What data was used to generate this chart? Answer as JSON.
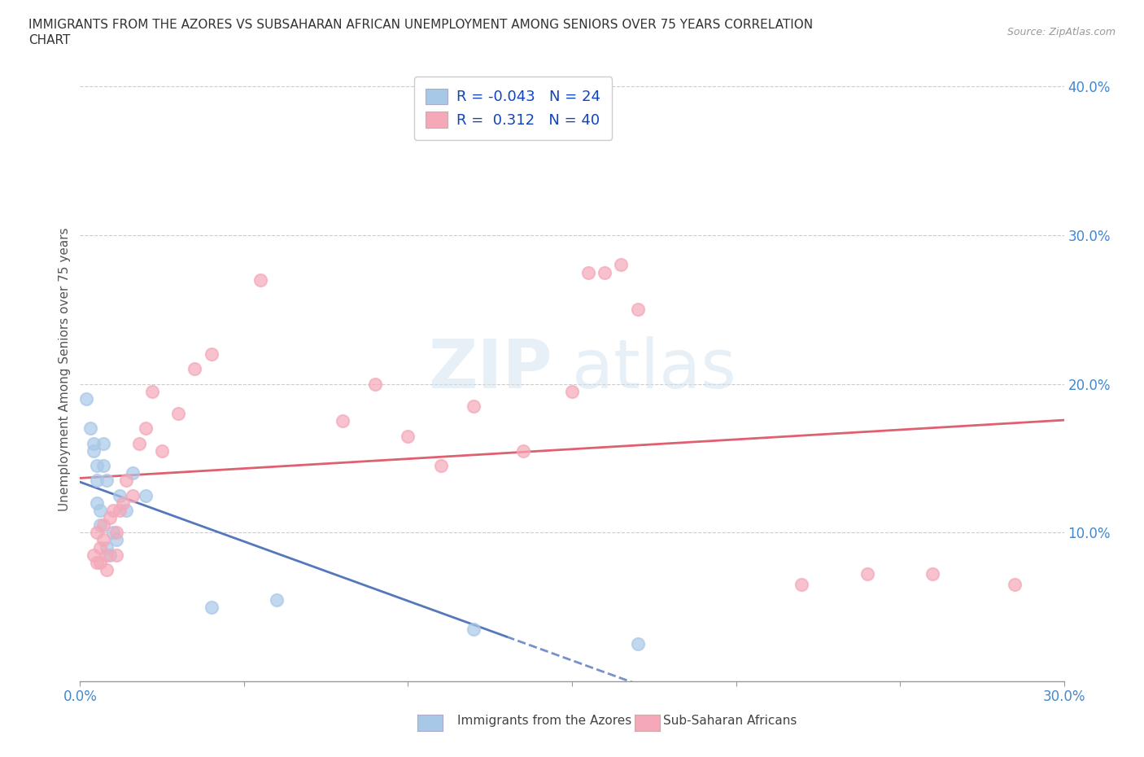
{
  "title_line1": "IMMIGRANTS FROM THE AZORES VS SUBSAHARAN AFRICAN UNEMPLOYMENT AMONG SENIORS OVER 75 YEARS CORRELATION",
  "title_line2": "CHART",
  "source_text": "Source: ZipAtlas.com",
  "ylabel": "Unemployment Among Seniors over 75 years",
  "xlim": [
    0.0,
    0.3
  ],
  "ylim": [
    0.0,
    0.42
  ],
  "xticks": [
    0.0,
    0.05,
    0.1,
    0.15,
    0.2,
    0.25,
    0.3
  ],
  "xtick_labels": [
    "0.0%",
    "",
    "",
    "",
    "",
    "",
    "30.0%"
  ],
  "ytick_positions": [
    0.1,
    0.2,
    0.3,
    0.4
  ],
  "ytick_labels": [
    "10.0%",
    "20.0%",
    "30.0%",
    "40.0%"
  ],
  "watermark": "ZIPatlas",
  "r_azores": -0.043,
  "n_azores": 24,
  "r_subsaharan": 0.312,
  "n_subsaharan": 40,
  "azores_color": "#a8c8e8",
  "subsaharan_color": "#f4a8b8",
  "azores_line_color": "#5577bb",
  "subsaharan_line_color": "#e06070",
  "legend_text_color": "#1144bb",
  "azores_x": [
    0.002,
    0.003,
    0.004,
    0.004,
    0.005,
    0.005,
    0.005,
    0.006,
    0.006,
    0.007,
    0.007,
    0.008,
    0.008,
    0.009,
    0.01,
    0.011,
    0.012,
    0.014,
    0.016,
    0.02,
    0.04,
    0.06,
    0.12,
    0.17
  ],
  "azores_y": [
    0.19,
    0.17,
    0.16,
    0.155,
    0.145,
    0.135,
    0.12,
    0.115,
    0.105,
    0.16,
    0.145,
    0.135,
    0.09,
    0.085,
    0.1,
    0.095,
    0.125,
    0.115,
    0.14,
    0.125,
    0.05,
    0.055,
    0.035,
    0.025
  ],
  "subsaharan_x": [
    0.004,
    0.005,
    0.005,
    0.006,
    0.006,
    0.007,
    0.007,
    0.008,
    0.008,
    0.009,
    0.01,
    0.011,
    0.011,
    0.012,
    0.013,
    0.014,
    0.016,
    0.018,
    0.02,
    0.022,
    0.025,
    0.03,
    0.035,
    0.04,
    0.055,
    0.08,
    0.09,
    0.1,
    0.11,
    0.12,
    0.135,
    0.15,
    0.155,
    0.16,
    0.165,
    0.17,
    0.22,
    0.24,
    0.26,
    0.285
  ],
  "subsaharan_y": [
    0.085,
    0.1,
    0.08,
    0.09,
    0.08,
    0.095,
    0.105,
    0.085,
    0.075,
    0.11,
    0.115,
    0.085,
    0.1,
    0.115,
    0.12,
    0.135,
    0.125,
    0.16,
    0.17,
    0.195,
    0.155,
    0.18,
    0.21,
    0.22,
    0.27,
    0.175,
    0.2,
    0.165,
    0.145,
    0.185,
    0.155,
    0.195,
    0.275,
    0.275,
    0.28,
    0.25,
    0.065,
    0.072,
    0.072,
    0.065
  ]
}
